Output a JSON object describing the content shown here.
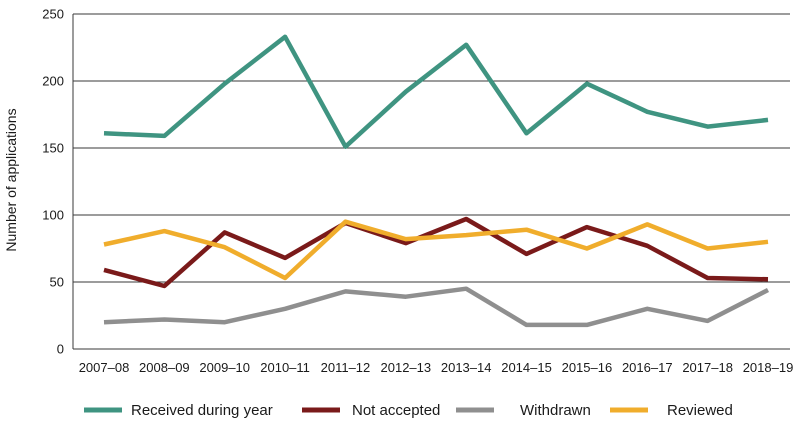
{
  "chart_data": {
    "type": "line",
    "title": "",
    "xlabel": "",
    "ylabel": "Number of applications",
    "ylim": [
      0,
      250
    ],
    "yticks": [
      0,
      50,
      100,
      150,
      200,
      250
    ],
    "grid": "horizontal",
    "legend_position": "bottom",
    "categories": [
      "2007–08",
      "2008–09",
      "2009–10",
      "2010–11",
      "2011–12",
      "2012–13",
      "2013–14",
      "2014–15",
      "2015–16",
      "2016–17",
      "2017–18",
      "2018–19"
    ],
    "series": [
      {
        "name": "Received during year",
        "color": "#3f9481",
        "values": [
          161,
          159,
          198,
          233,
          151,
          192,
          227,
          161,
          198,
          177,
          166,
          171
        ]
      },
      {
        "name": "Not accepted",
        "color": "#7a1a1a",
        "values": [
          59,
          47,
          87,
          68,
          94,
          79,
          97,
          71,
          91,
          77,
          53,
          52
        ]
      },
      {
        "name": "Withdrawn",
        "color": "#8f8f8f",
        "values": [
          20,
          22,
          20,
          30,
          43,
          39,
          45,
          18,
          18,
          30,
          21,
          44
        ]
      },
      {
        "name": "Reviewed",
        "color": "#f0ad2c",
        "values": [
          78,
          88,
          76,
          53,
          95,
          82,
          85,
          89,
          75,
          93,
          75,
          80
        ]
      }
    ]
  }
}
